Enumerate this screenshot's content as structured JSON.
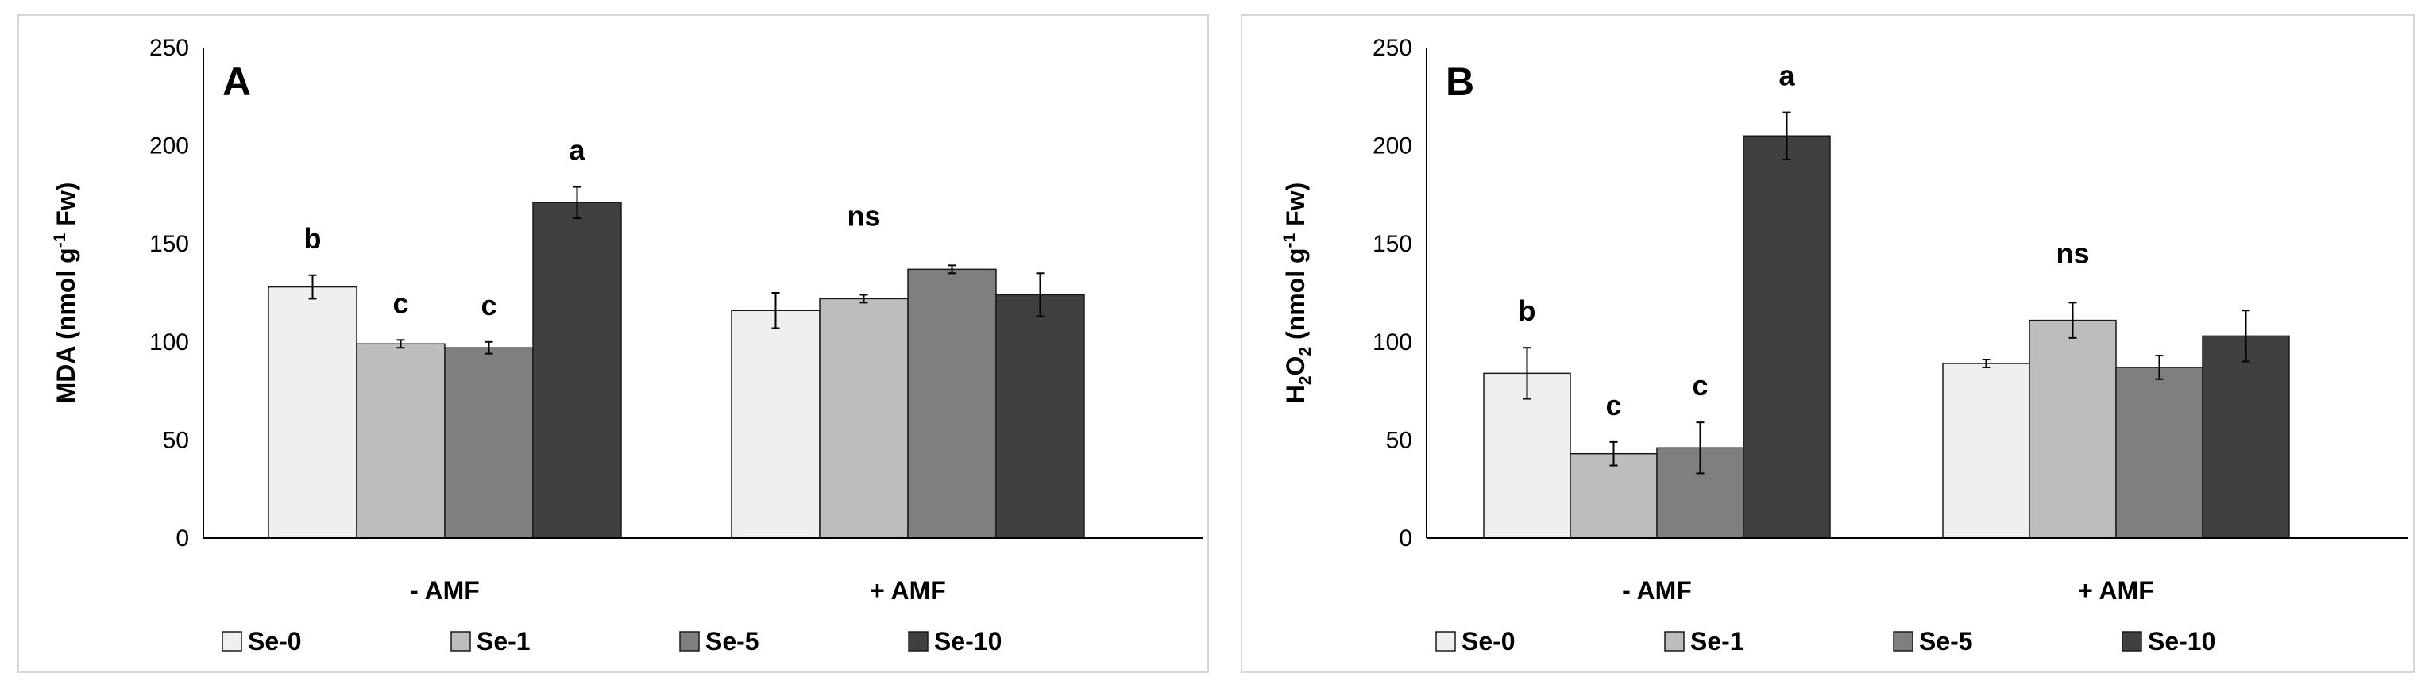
{
  "chart_data": [
    {
      "type": "bar",
      "panel_label": "A",
      "ylabel_main": "MDA (nmol g",
      "ylabel_sup": "-1",
      "ylabel_tail": " Fw)",
      "ylim": [
        0,
        250
      ],
      "yticks": [
        "0",
        "50",
        "100",
        "150",
        "200",
        "250"
      ],
      "categories": [
        "- AMF",
        "+ AMF"
      ],
      "series": [
        {
          "name": "Se-0",
          "color": "#efefef",
          "values": [
            128,
            116
          ],
          "errors": [
            6,
            9
          ]
        },
        {
          "name": "Se-1",
          "color": "#bdbdbd",
          "values": [
            99,
            122
          ],
          "errors": [
            2,
            2
          ]
        },
        {
          "name": "Se-5",
          "color": "#7f7f7f",
          "values": [
            97,
            137
          ],
          "errors": [
            3,
            2
          ]
        },
        {
          "name": "Se-10",
          "color": "#404040",
          "values": [
            171,
            124
          ],
          "errors": [
            8,
            11
          ]
        }
      ],
      "significance_letters": [
        [
          "b",
          "c",
          "c",
          "a"
        ],
        [
          "ns"
        ]
      ]
    },
    {
      "type": "bar",
      "panel_label": "B",
      "ylabel_main": "H",
      "ylabel_sub1": "2",
      "ylabel_mid": "O",
      "ylabel_sub2": "2",
      "ylabel_rest": " (nmol g",
      "ylabel_sup": "-1",
      "ylabel_tail": " Fw)",
      "ylim": [
        0,
        250
      ],
      "yticks": [
        "0",
        "50",
        "100",
        "150",
        "200",
        "250"
      ],
      "categories": [
        "- AMF",
        "+ AMF"
      ],
      "series": [
        {
          "name": "Se-0",
          "color": "#efefef",
          "values": [
            84,
            89
          ],
          "errors": [
            13,
            2
          ]
        },
        {
          "name": "Se-1",
          "color": "#bdbdbd",
          "values": [
            43,
            111
          ],
          "errors": [
            6,
            9
          ]
        },
        {
          "name": "Se-5",
          "color": "#7f7f7f",
          "values": [
            46,
            87
          ],
          "errors": [
            13,
            6
          ]
        },
        {
          "name": "Se-10",
          "color": "#404040",
          "values": [
            205,
            103
          ],
          "errors": [
            12,
            13
          ]
        }
      ],
      "significance_letters": [
        [
          "b",
          "c",
          "c",
          "a"
        ],
        [
          "ns"
        ]
      ]
    }
  ]
}
